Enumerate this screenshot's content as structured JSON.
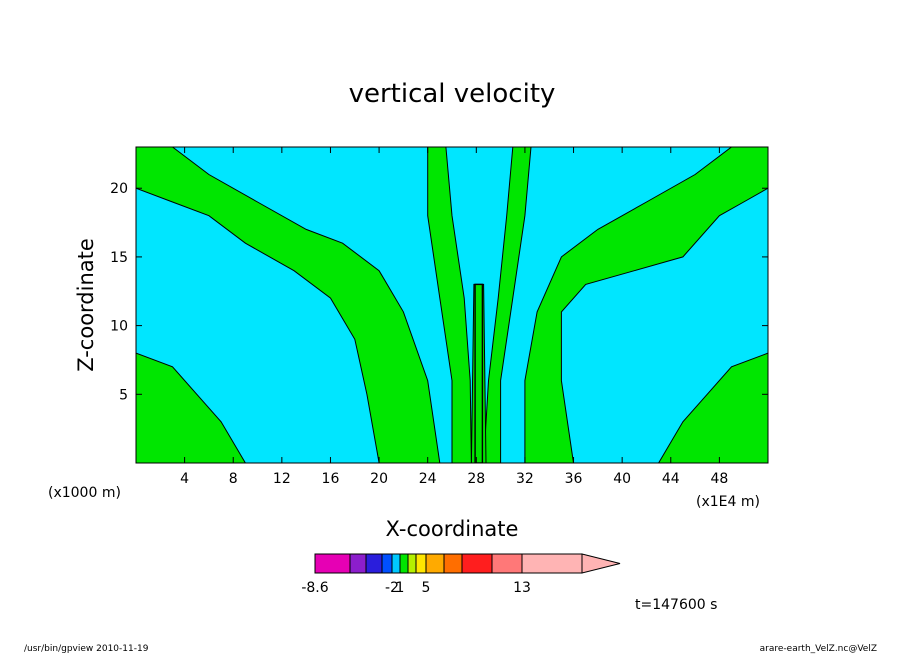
{
  "chart_data": {
    "type": "heatmap",
    "title": "vertical velocity",
    "xlabel": "X-coordinate",
    "ylabel": "Z-coordinate",
    "x_unit": "(x1E4 m)",
    "y_unit": "(x1000 m)",
    "xlim": [
      0,
      52
    ],
    "ylim": [
      0,
      23
    ],
    "xticks": [
      4,
      8,
      12,
      16,
      20,
      24,
      28,
      32,
      36,
      40,
      44,
      48
    ],
    "yticks": [
      5,
      10,
      15,
      20
    ],
    "field_colors": {
      "background": "#00e6ff",
      "positive": "#00e600",
      "contour": "#000000"
    },
    "colorbar": {
      "colors": [
        "#e600b4",
        "#8c1ecc",
        "#2a1edc",
        "#0050ff",
        "#00c8ff",
        "#00e600",
        "#b4f000",
        "#ffe600",
        "#ffaa00",
        "#ff6e00",
        "#ff1e1e",
        "#ff7878",
        "#ffb4b4"
      ],
      "labels": [
        {
          "text": "-8.6",
          "index": 0
        },
        {
          "text": "-2",
          "index": 4
        },
        {
          "text": "1",
          "index": 5
        },
        {
          "text": "5",
          "index": 8
        },
        {
          "text": "13",
          "index": 12
        }
      ]
    },
    "time_label": "t=147600 s",
    "footer_left": "/usr/bin/gpview   2010-11-19",
    "footer_right": "arare-earth_VelZ.nc@VelZ"
  }
}
